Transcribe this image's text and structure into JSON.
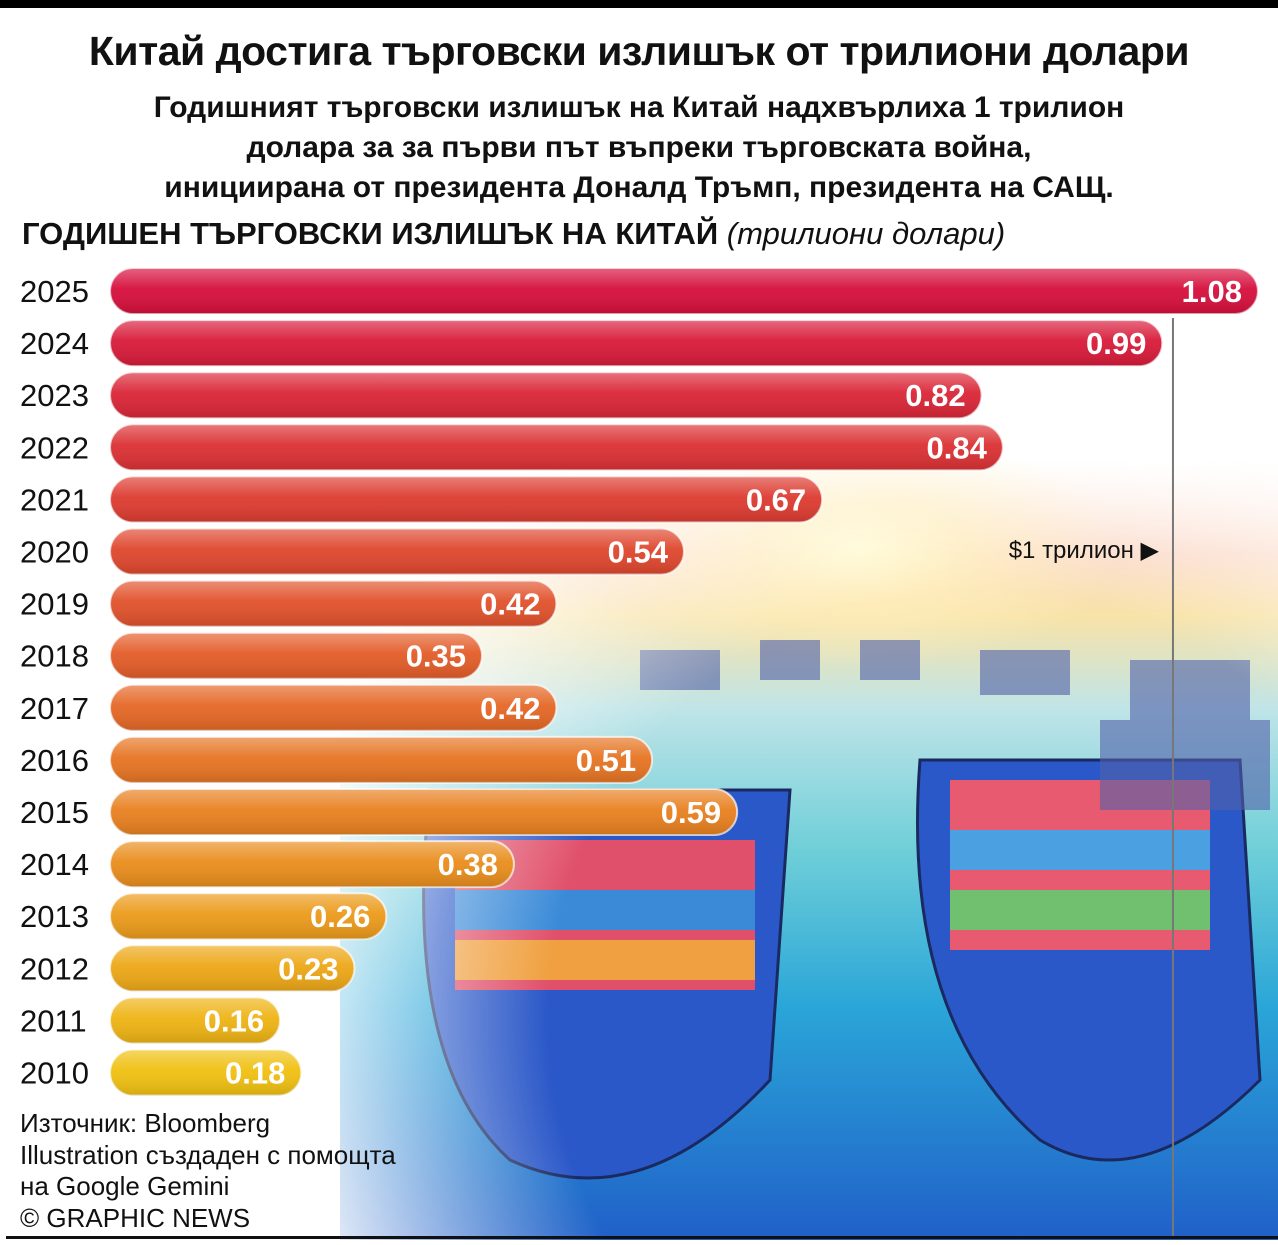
{
  "title": "Китай достига търговски излишък от трилиони долари",
  "subtitle_lines": [
    "Годишният търговски излишък на Китай надхвърлиха 1 трилион",
    "долара за за първи път  въпреки търговската война,",
    "инициирана от президента Доналд Тръмп, президента на САЩ."
  ],
  "chart_data": {
    "type": "bar",
    "orientation": "horizontal",
    "title": "ГОДИШЕН ТЪРГОВСКИ ИЗЛИШЪК НА КИТАЙ",
    "unit_label": "(трилиони долари)",
    "categories": [
      "2025",
      "2024",
      "2023",
      "2022",
      "2021",
      "2020",
      "2019",
      "2018",
      "2017",
      "2016",
      "2015",
      "2014",
      "2013",
      "2012",
      "2011",
      "2010"
    ],
    "values": [
      1.08,
      0.99,
      0.82,
      0.84,
      0.67,
      0.54,
      0.42,
      0.35,
      0.42,
      0.51,
      0.59,
      0.38,
      0.26,
      0.23,
      0.16,
      0.18
    ],
    "value_labels": [
      "1.08",
      "0.99",
      "0.82",
      "0.84",
      "0.67",
      "0.54",
      "0.42",
      "0.35",
      "0.42",
      "0.51",
      "0.59",
      "0.38",
      "0.26",
      "0.23",
      "0.16",
      "0.18"
    ],
    "xlim": [
      0,
      1.08
    ],
    "reference_line": {
      "value": 1.0,
      "label": "$1 трилион ▶"
    },
    "colors": {
      "top": "#d60f3c",
      "middle": "#e56a24",
      "bottom": "#f0c010"
    }
  },
  "source": {
    "line1": "Източник: Bloomberg",
    "line2": "Illustration създаден с помощта",
    "line3": "на Google Gemini",
    "line4": "© GRAPHIC NEWS"
  }
}
